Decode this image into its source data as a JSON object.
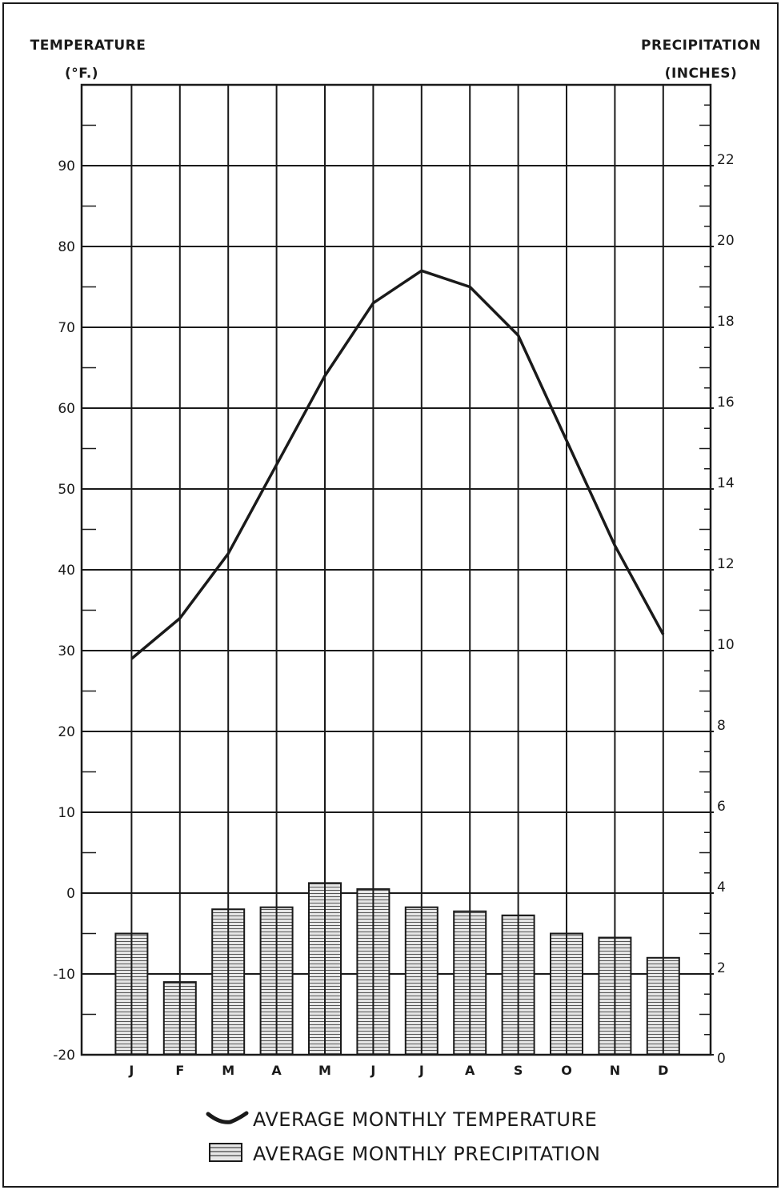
{
  "chart_data": {
    "type": "bar+line",
    "categories": [
      "J",
      "F",
      "M",
      "A",
      "M",
      "J",
      "J",
      "A",
      "S",
      "O",
      "N",
      "D"
    ],
    "series": [
      {
        "name": "AVERAGE MONTHLY TEMPERATURE",
        "type": "line",
        "axis": "left",
        "values": [
          29,
          34,
          42,
          53,
          64,
          73,
          77,
          75,
          69,
          56,
          43,
          32
        ]
      },
      {
        "name": "AVERAGE MONTHLY PRECIPITATION",
        "type": "bar",
        "axis": "right",
        "values": [
          3.0,
          1.8,
          3.6,
          3.65,
          4.25,
          4.1,
          3.65,
          3.55,
          3.45,
          3.0,
          2.9,
          2.4
        ]
      }
    ],
    "left_axis": {
      "title_line1": "TEMPERATURE",
      "title_line2": "(°F.)",
      "ylim": [
        -20,
        100
      ],
      "ticks": [
        -20,
        -10,
        0,
        10,
        20,
        30,
        40,
        50,
        60,
        70,
        80,
        90
      ]
    },
    "right_axis": {
      "title_line1": "PRECIPITATION",
      "title_line2": "(INCHES)",
      "ylim": [
        0,
        24
      ],
      "ticks": [
        0,
        2,
        4,
        6,
        8,
        10,
        12,
        14,
        16,
        18,
        20,
        22
      ]
    },
    "grid": true,
    "legend_position": "bottom-center",
    "colors": {
      "ink": "#1a1a1a",
      "bar_fill": "#e6e6e6"
    }
  }
}
